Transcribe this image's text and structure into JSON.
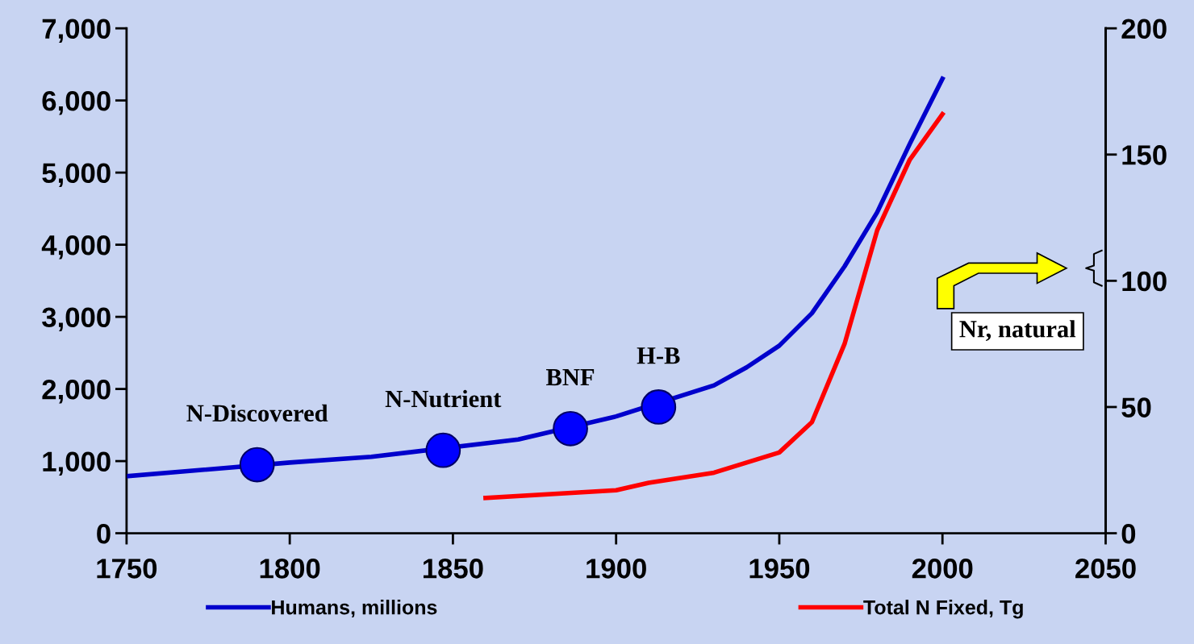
{
  "chart_data": {
    "type": "line",
    "xlim": [
      1750,
      2050
    ],
    "xticks": [
      1750,
      1800,
      1850,
      1900,
      1950,
      2000,
      2050
    ],
    "ylim": [
      0,
      7000
    ],
    "yticks": [
      {
        "value": 0,
        "label": "0"
      },
      {
        "value": 1000,
        "label": "1,000"
      },
      {
        "value": 2000,
        "label": "2,000"
      },
      {
        "value": 3000,
        "label": "3,000"
      },
      {
        "value": 4000,
        "label": "4,000"
      },
      {
        "value": 5000,
        "label": "5,000"
      },
      {
        "value": 6000,
        "label": "6,000"
      },
      {
        "value": 7000,
        "label": "7,000"
      }
    ],
    "y2lim": [
      0,
      200
    ],
    "y2ticks": [
      0,
      50,
      100,
      150,
      200
    ],
    "grid": false,
    "legend": "bottom",
    "marker": "none",
    "line_style": "solid",
    "series": [
      {
        "name": "Humans, millions",
        "color": "#0000cc",
        "x": [
          1750,
          1800,
          1825,
          1870,
          1900,
          1930,
          1940,
          1950,
          1960,
          1970,
          1980,
          1990,
          2000
        ],
        "values": [
          790,
          980,
          1060,
          1300,
          1620,
          2050,
          2300,
          2600,
          3050,
          3700,
          4450,
          5400,
          6300
        ]
      },
      {
        "name": "Total N Fixed, Tg",
        "color": "#ff0000",
        "axis": "y2",
        "x": [
          1860,
          1900,
          1910,
          1930,
          1950,
          1960,
          1970,
          1980,
          1990,
          2000
        ],
        "values": [
          14,
          17,
          20,
          24,
          32,
          44,
          75,
          120,
          148,
          166
        ]
      },
      {
        "type": "scatter",
        "marker": "circle",
        "color": "#0000ff",
        "x": [
          1790,
          1847,
          1886,
          1913
        ],
        "values": [
          950,
          1150,
          1450,
          1750
        ]
      }
    ],
    "annotations": [
      {
        "text": "N-Discovered",
        "x": 1790,
        "y": 950
      },
      {
        "text": "N-Nutrient",
        "x": 1847,
        "y": 1150
      },
      {
        "text": "BNF",
        "x": 1886,
        "y": 1450
      },
      {
        "text": "H-B",
        "x": 1913,
        "y": 1750
      },
      "Nr, natural"
    ]
  }
}
